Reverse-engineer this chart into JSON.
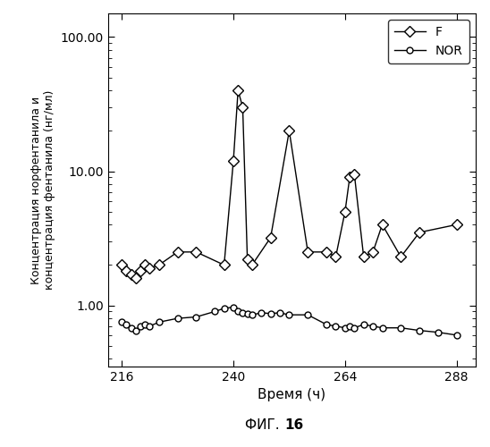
{
  "F_x": [
    216,
    217,
    218,
    219,
    220,
    221,
    222,
    224,
    228,
    232,
    238,
    240,
    241,
    242,
    243,
    244,
    248,
    252,
    256,
    260,
    262,
    264,
    265,
    266,
    268,
    270,
    272,
    276,
    280,
    288
  ],
  "F_y": [
    2.0,
    1.8,
    1.7,
    1.6,
    1.8,
    2.0,
    1.9,
    2.0,
    2.5,
    2.5,
    2.0,
    12.0,
    40.0,
    30.0,
    2.2,
    2.0,
    3.2,
    20.0,
    2.5,
    2.5,
    2.3,
    5.0,
    9.0,
    9.5,
    2.3,
    2.5,
    4.0,
    2.3,
    3.5,
    4.0
  ],
  "NOR_x": [
    216,
    217,
    218,
    219,
    220,
    221,
    222,
    224,
    228,
    232,
    236,
    238,
    240,
    241,
    242,
    243,
    244,
    246,
    248,
    250,
    252,
    256,
    260,
    262,
    264,
    265,
    266,
    268,
    270,
    272,
    276,
    280,
    284,
    288
  ],
  "NOR_y": [
    0.75,
    0.72,
    0.68,
    0.65,
    0.7,
    0.72,
    0.7,
    0.75,
    0.8,
    0.82,
    0.9,
    0.95,
    0.97,
    0.9,
    0.88,
    0.86,
    0.85,
    0.88,
    0.87,
    0.88,
    0.85,
    0.85,
    0.72,
    0.7,
    0.68,
    0.7,
    0.68,
    0.72,
    0.7,
    0.68,
    0.68,
    0.65,
    0.63,
    0.6
  ],
  "xlabel": "Время (ч)",
  "ylabel_line1": "Концентрация норфентанила и",
  "ylabel_line2": "концентрация фентанила (нг/мл)",
  "fig_label_prefix": "ФИГ. ",
  "fig_label_number": "16",
  "xlim": [
    213,
    292
  ],
  "xticks": [
    216,
    240,
    264,
    288
  ],
  "ylim": [
    0.35,
    150
  ],
  "yticks": [
    1.0,
    10.0,
    100.0
  ],
  "yticklabels": [
    "1.00",
    "10.00",
    "100.00"
  ],
  "legend_F": "F",
  "legend_NOR": "NOR",
  "bg_color": "#ffffff",
  "line_color": "#000000"
}
